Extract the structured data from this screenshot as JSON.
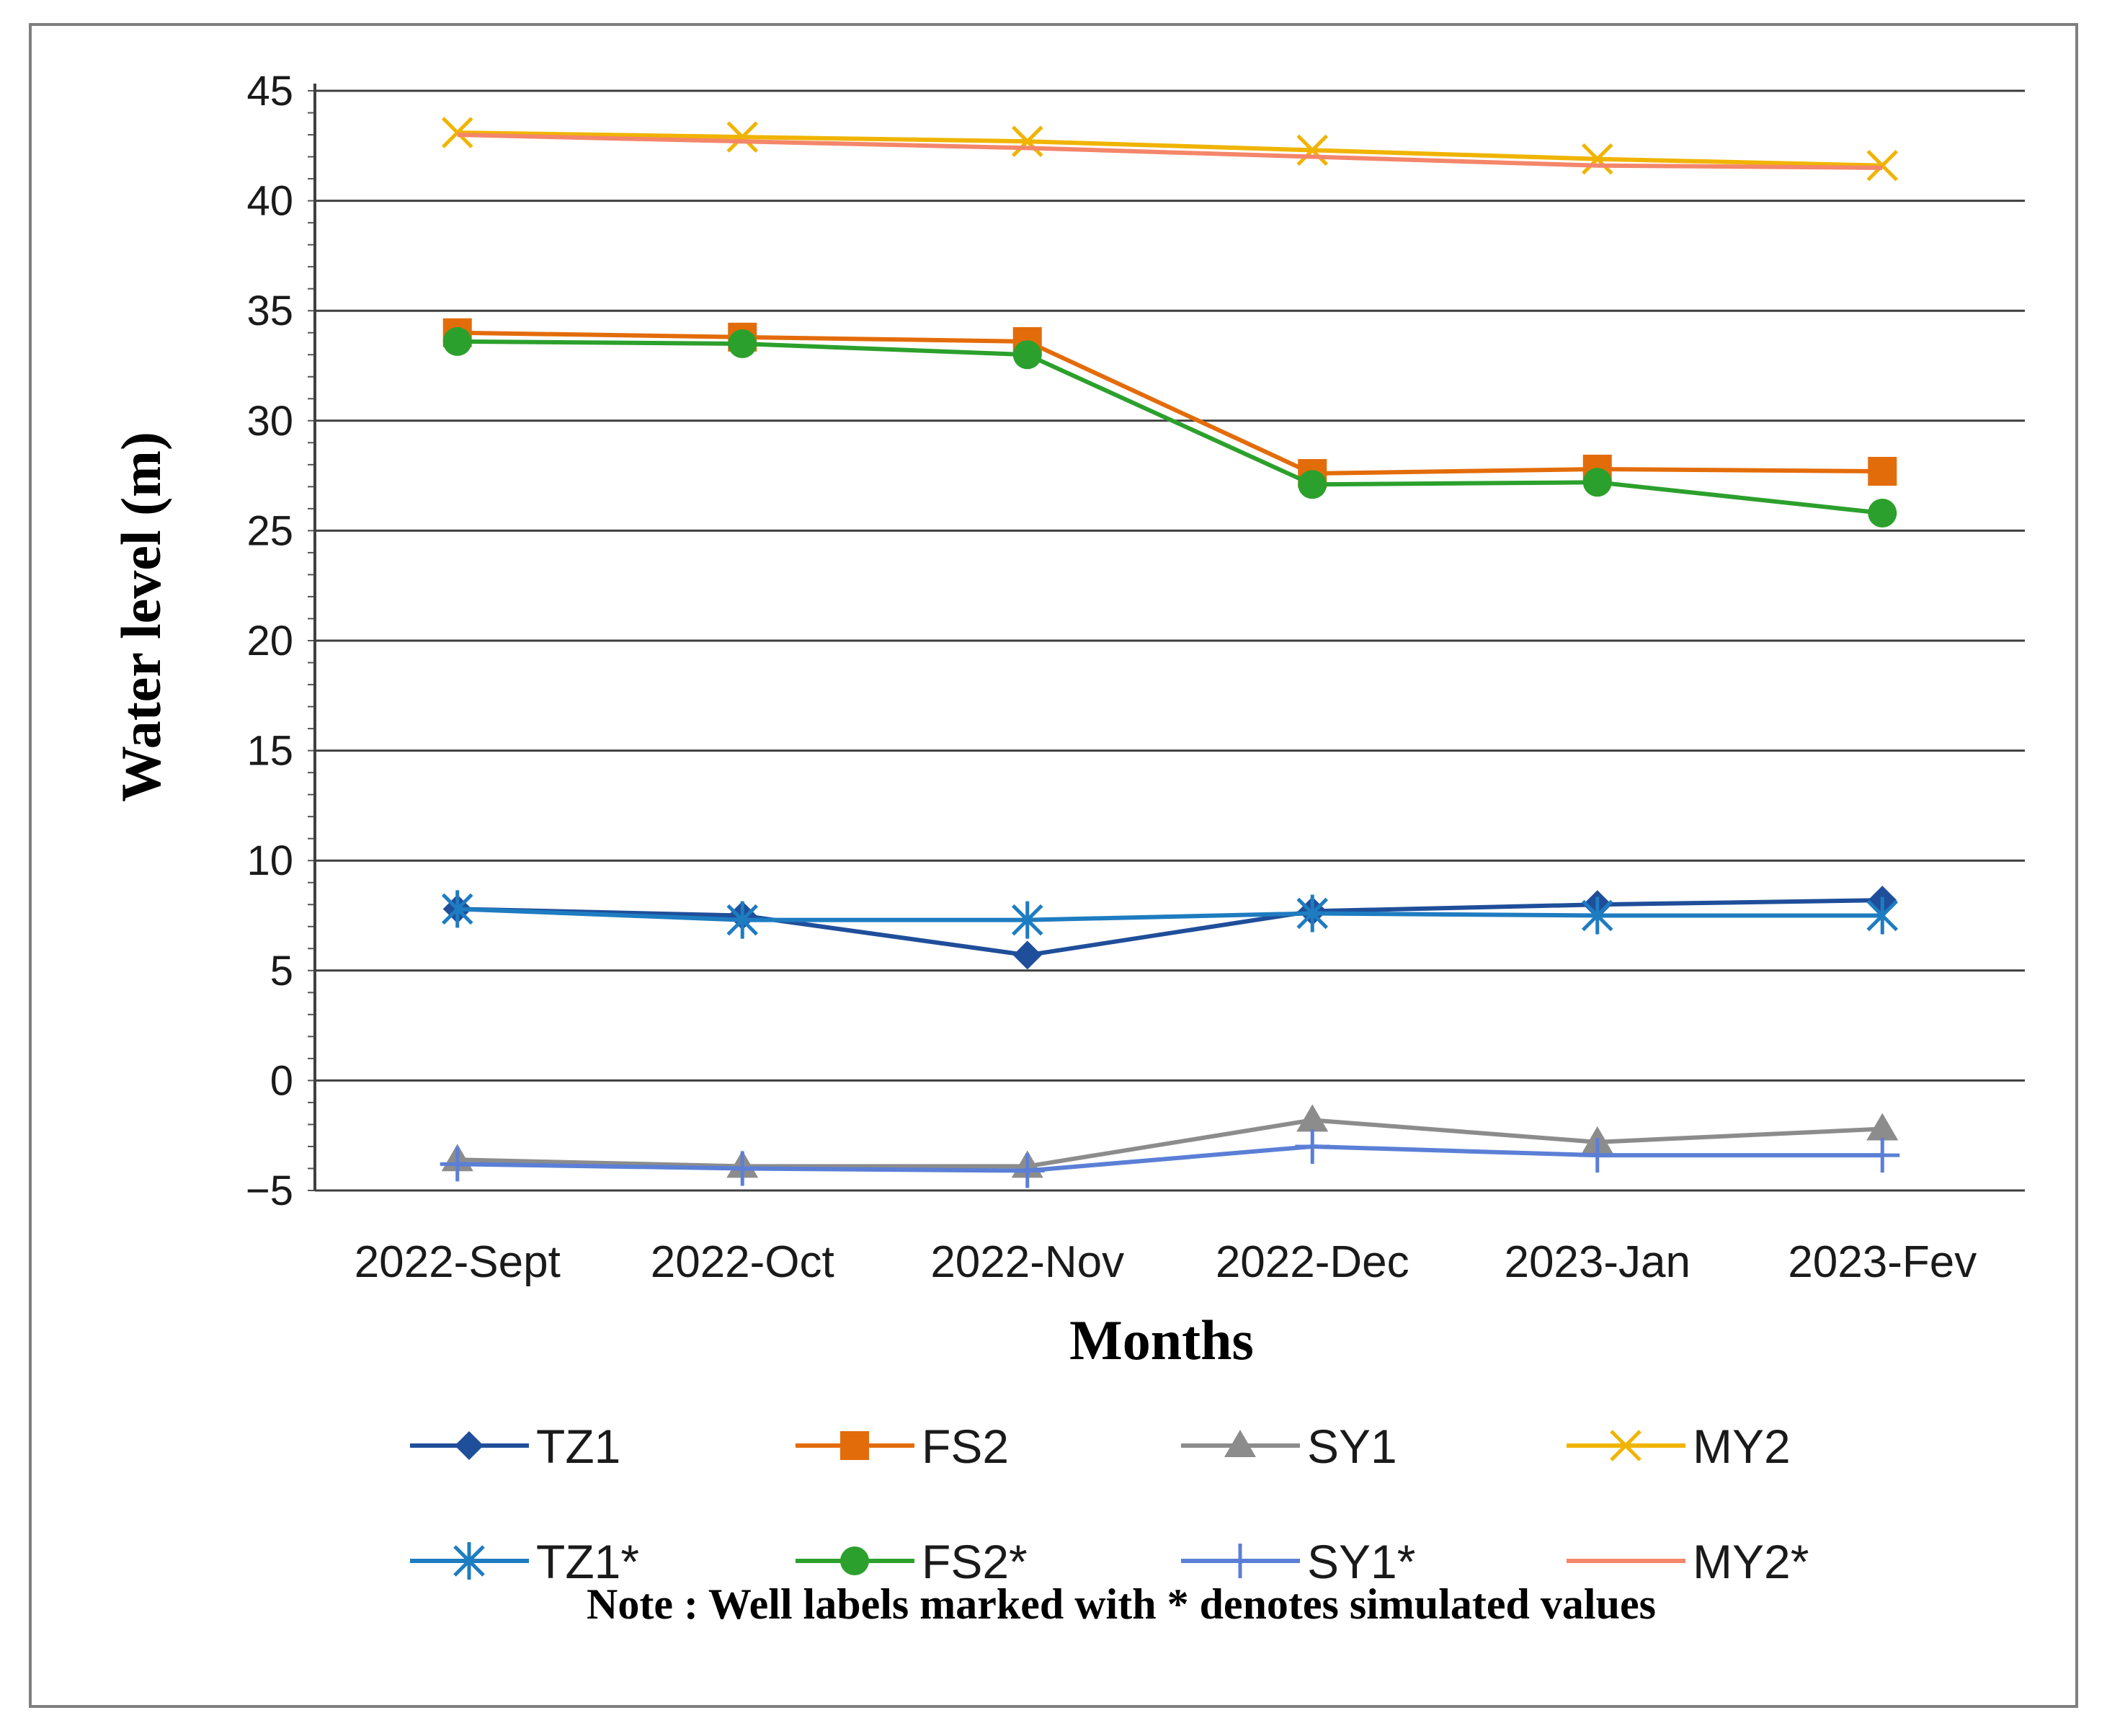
{
  "chart_data": {
    "type": "line",
    "title": "",
    "xlabel": "Months",
    "ylabel": "Water level (m)",
    "ylim": [
      -5,
      45
    ],
    "yticks": [
      45,
      40,
      35,
      30,
      25,
      20,
      15,
      10,
      5,
      0,
      -5
    ],
    "categories": [
      "2022-Sept",
      "2022-Oct",
      "2022-Nov",
      "2022-Dec",
      "2023-Jan",
      "2023-Fev"
    ],
    "grid": true,
    "legend_position": "bottom",
    "series": [
      {
        "name": "TZ1",
        "color": "#1f4e9a",
        "marker": "diamond",
        "values": [
          7.8,
          7.5,
          5.7,
          7.7,
          8.0,
          8.2
        ]
      },
      {
        "name": "FS2",
        "color": "#e36c0a",
        "marker": "square",
        "values": [
          34.0,
          33.8,
          33.6,
          27.6,
          27.8,
          27.7
        ]
      },
      {
        "name": "SY1",
        "color": "#8c8c8c",
        "marker": "triangle",
        "values": [
          -3.6,
          -3.9,
          -3.9,
          -1.8,
          -2.8,
          -2.2
        ]
      },
      {
        "name": "MY2",
        "color": "#f0b400",
        "marker": "x",
        "values": [
          43.1,
          42.9,
          42.7,
          42.3,
          41.9,
          41.6
        ]
      },
      {
        "name": "TZ1*",
        "color": "#1e7cc1",
        "marker": "asterisk",
        "values": [
          7.8,
          7.3,
          7.3,
          7.6,
          7.5,
          7.5
        ]
      },
      {
        "name": "FS2*",
        "color": "#2ca02c",
        "marker": "circle",
        "values": [
          33.6,
          33.5,
          33.0,
          27.1,
          27.2,
          25.8
        ]
      },
      {
        "name": "SY1*",
        "color": "#5b7fd6",
        "marker": "plus",
        "values": [
          -3.8,
          -4.0,
          -4.1,
          -3.0,
          -3.4,
          -3.4
        ]
      },
      {
        "name": "MY2*",
        "color": "#f4866a",
        "marker": "none",
        "values": [
          43.0,
          42.7,
          42.4,
          42.0,
          41.6,
          41.5
        ]
      }
    ],
    "note": "Note : Well labels marked with * denotes simulated values"
  }
}
